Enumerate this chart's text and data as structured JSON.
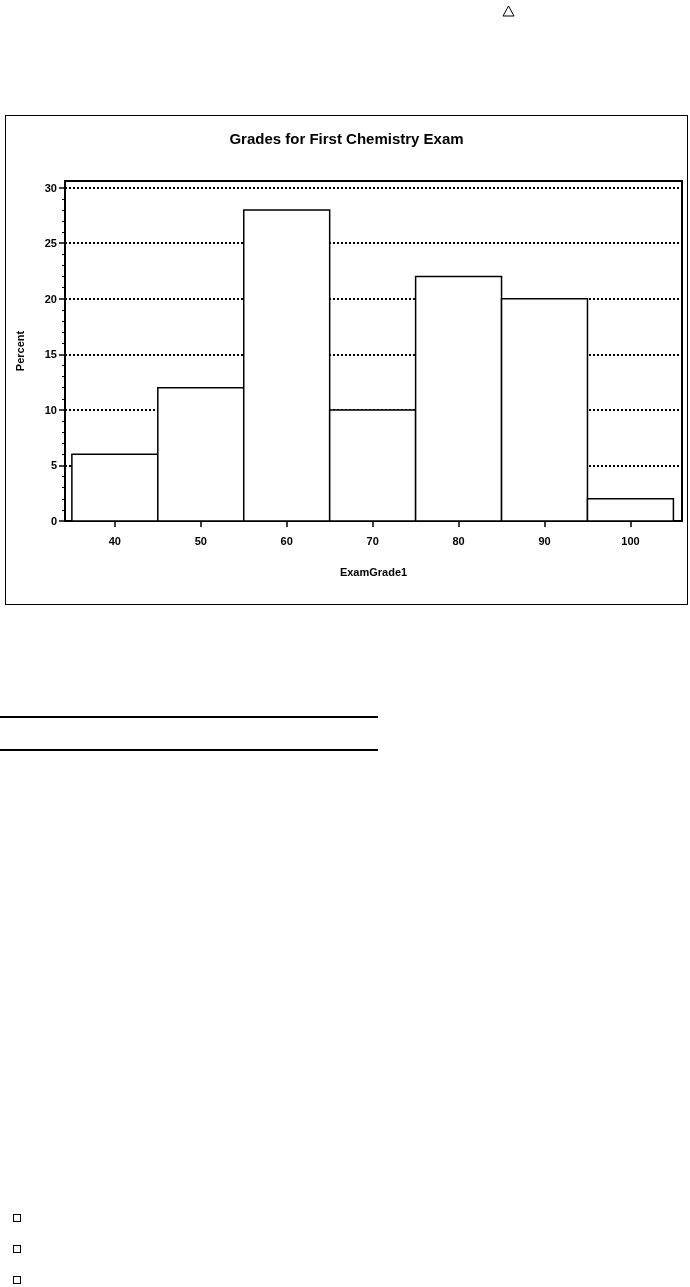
{
  "chart_data": {
    "type": "histogram",
    "title": "Grades for First Chemistry Exam",
    "xlabel": "ExamGrade1",
    "ylabel": "Percent",
    "bins": [
      35,
      45,
      55,
      65,
      75,
      85,
      95,
      105
    ],
    "values": [
      6,
      12,
      28,
      10,
      22,
      20,
      2
    ],
    "color": "#ffffff",
    "xlim": [
      34.2,
      106
    ],
    "xticks": [
      40,
      50,
      60,
      70,
      80,
      90,
      100
    ],
    "ylim": [
      0,
      30.6
    ],
    "yticks": [
      0,
      5,
      10,
      15,
      20,
      25,
      30
    ],
    "grid": "y"
  }
}
